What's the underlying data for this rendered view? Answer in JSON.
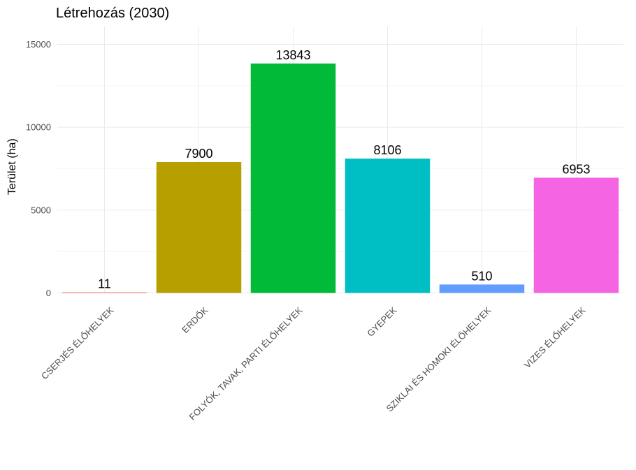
{
  "chart_data": {
    "type": "bar",
    "title": "Létrehozás (2030)",
    "xlabel": "",
    "ylabel": "Terület (ha)",
    "ylim": [
      0,
      15500
    ],
    "yticks": [
      0,
      5000,
      10000,
      15000
    ],
    "grid": true,
    "legend": "none",
    "categories": [
      "CSERJÉS ÉLŐHELYEK",
      "ERDŐK",
      "FOLYÓK, TAVAK, PARTI ÉLŐHELYEK",
      "GYEPEK",
      "SZIKLAI ÉS HOMOKI ÉLŐHELYEK",
      "VIZES ÉLŐHELYEK"
    ],
    "values": [
      11,
      7900,
      13843,
      8106,
      510,
      6953
    ],
    "data_labels": [
      "11",
      "7900",
      "13843",
      "8106",
      "510",
      "6953"
    ],
    "colors": [
      "#F8766D",
      "#B79F00",
      "#00BA38",
      "#00BFC4",
      "#619CFF",
      "#F564E3"
    ]
  }
}
